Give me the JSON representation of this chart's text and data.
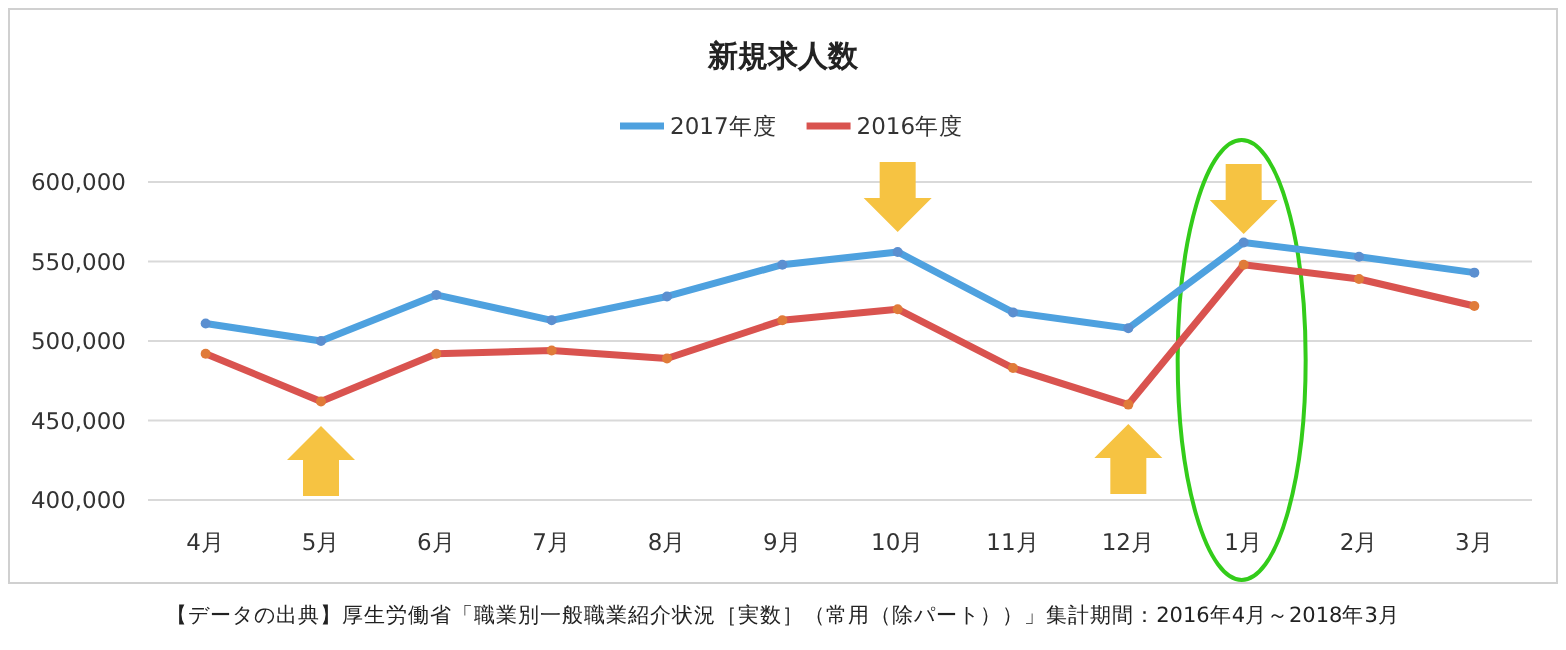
{
  "chart_data": {
    "type": "line",
    "title": "新規求人数",
    "categories": [
      "4月",
      "5月",
      "6月",
      "7月",
      "8月",
      "9月",
      "10月",
      "11月",
      "12月",
      "1月",
      "2月",
      "3月"
    ],
    "series": [
      {
        "name": "2017年度",
        "color": "#4ea1df",
        "values": [
          511000,
          500000,
          529000,
          513000,
          528000,
          548000,
          556000,
          518000,
          508000,
          562000,
          553000,
          543000
        ]
      },
      {
        "name": "2016年度",
        "color": "#d9534f",
        "values": [
          492000,
          462000,
          492000,
          494000,
          489000,
          513000,
          520000,
          483000,
          460000,
          548000,
          539000,
          522000
        ]
      }
    ],
    "ylim": [
      400000,
      600000
    ],
    "yticks": [
      {
        "value": 400000,
        "label": "400,000"
      },
      {
        "value": 450000,
        "label": "450,000"
      },
      {
        "value": 500000,
        "label": "500,000"
      },
      {
        "value": 550000,
        "label": "550,000"
      },
      {
        "value": 600000,
        "label": "600,000"
      }
    ],
    "grid": "y",
    "legend": "top",
    "marker": "circle",
    "annotations": [
      "【データの出典】厚生労働省「職業別一般職業紹介状況［実数］（常用（除パート））」集計期間：2016年4月～2018年3月"
    ]
  }
}
